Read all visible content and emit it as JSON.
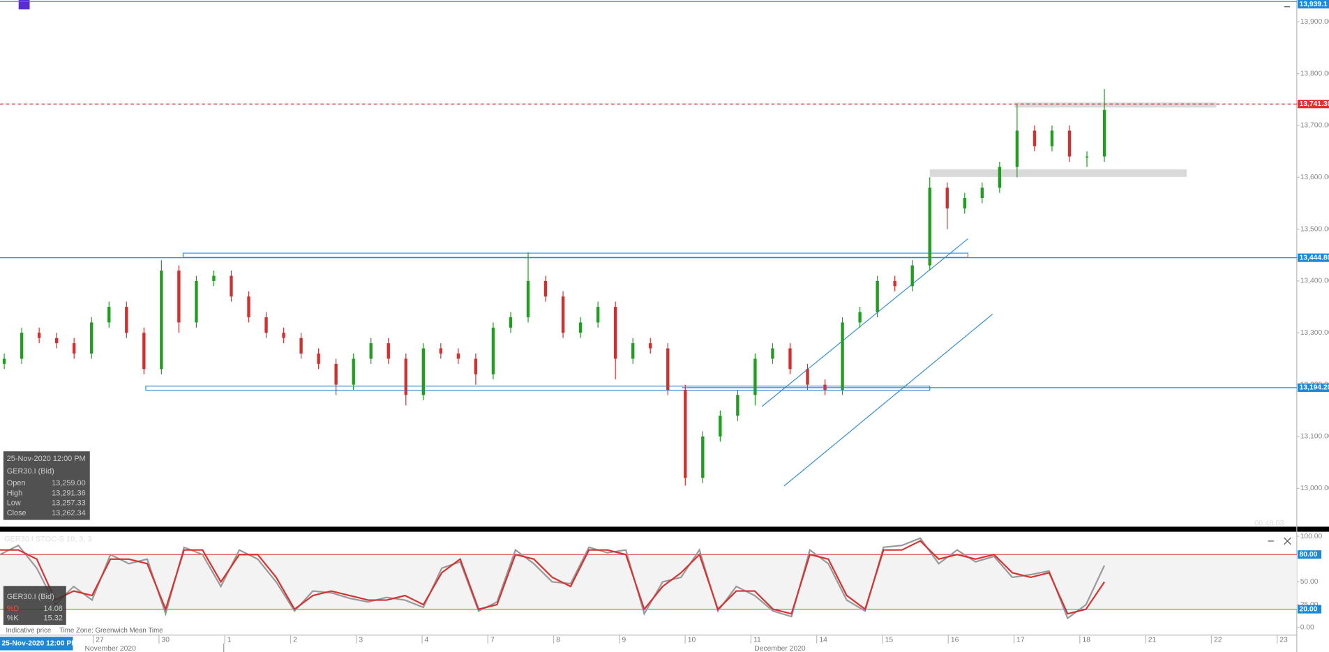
{
  "chart_data": {
    "type": "candlestick",
    "up_color": "#1f9e1f",
    "down_color": "#d32f2f",
    "ylim": [
      12926,
      13942
    ],
    "yticks": [
      {
        "value": 13000,
        "label": "13,000.00"
      },
      {
        "value": 13100,
        "label": "13,100.00"
      },
      {
        "value": 13200,
        "label": "13,200.00"
      },
      {
        "value": 13300,
        "label": "13,300.00"
      },
      {
        "value": 13400,
        "label": "13,400.00"
      },
      {
        "value": 13500,
        "label": "13,500.00"
      },
      {
        "value": 13600,
        "label": "13,600.00"
      },
      {
        "value": 13700,
        "label": "13,700.00"
      },
      {
        "value": 13800,
        "label": "13,800.00"
      },
      {
        "value": 13900,
        "label": "13,900.00"
      }
    ],
    "price_markers": [
      {
        "value": 13939.1,
        "label": "13,939.1",
        "color": "#1e88d6"
      },
      {
        "value": 13741.3,
        "label": "13,741.30",
        "color": "#e03030",
        "dashed": true
      },
      {
        "value": 13444.8,
        "label": "13,444.80",
        "color": "#1e88d6"
      },
      {
        "value": 13194.2,
        "label": "13,194.20",
        "color": "#1e88d6"
      }
    ],
    "candles": {
      "open": [
        13240,
        13250,
        13300,
        13290,
        13280,
        13260,
        13320,
        13350,
        13300,
        13230,
        13420,
        13320,
        13400,
        13410,
        13370,
        13330,
        13300,
        13290,
        13260,
        13240,
        13200,
        13250,
        13280,
        13250,
        13180,
        13270,
        13260,
        13250,
        13220,
        13310,
        13330,
        13400,
        13370,
        13300,
        13320,
        13350,
        13250,
        13280,
        13270,
        13190,
        13020,
        13100,
        13140,
        13180,
        13250,
        13270,
        13230,
        13200,
        13190,
        13320,
        13340,
        13400,
        13390,
        13430,
        13580,
        13540,
        13560,
        13580,
        13620,
        13690,
        13660,
        13690,
        13640,
        13640
      ],
      "high": [
        13260,
        13310,
        13310,
        13300,
        13290,
        13330,
        13360,
        13360,
        13310,
        13440,
        13430,
        13410,
        13420,
        13420,
        13380,
        13340,
        13310,
        13300,
        13270,
        13250,
        13260,
        13290,
        13290,
        13260,
        13280,
        13280,
        13270,
        13260,
        13320,
        13340,
        13455,
        13410,
        13380,
        13330,
        13360,
        13360,
        13290,
        13290,
        13280,
        13200,
        13110,
        13150,
        13190,
        13260,
        13280,
        13280,
        13240,
        13210,
        13330,
        13350,
        13410,
        13410,
        13440,
        13600,
        13590,
        13570,
        13590,
        13630,
        13740,
        13700,
        13700,
        13700,
        13650,
        13770
      ],
      "low": [
        13230,
        13240,
        13280,
        13270,
        13250,
        13250,
        13310,
        13290,
        13220,
        13220,
        13300,
        13310,
        13390,
        13360,
        13320,
        13290,
        13280,
        13250,
        13230,
        13180,
        13190,
        13240,
        13240,
        13160,
        13170,
        13250,
        13240,
        13200,
        13210,
        13300,
        13320,
        13360,
        13290,
        13290,
        13310,
        13210,
        13240,
        13260,
        13180,
        13005,
        13010,
        13090,
        13130,
        13160,
        13240,
        13220,
        13190,
        13180,
        13180,
        13310,
        13330,
        13380,
        13380,
        13420,
        13500,
        13530,
        13550,
        13570,
        13600,
        13650,
        13650,
        13630,
        13620,
        13630
      ],
      "close": [
        13250,
        13300,
        13290,
        13280,
        13260,
        13320,
        13350,
        13300,
        13230,
        13420,
        13320,
        13400,
        13410,
        13370,
        13330,
        13300,
        13290,
        13260,
        13240,
        13200,
        13250,
        13280,
        13250,
        13180,
        13270,
        13260,
        13250,
        13220,
        13310,
        13330,
        13400,
        13370,
        13300,
        13320,
        13350,
        13250,
        13280,
        13270,
        13190,
        13020,
        13100,
        13140,
        13180,
        13250,
        13270,
        13230,
        13200,
        13190,
        13320,
        13340,
        13400,
        13390,
        13430,
        13580,
        13540,
        13560,
        13580,
        13620,
        13690,
        13660,
        13690,
        13640,
        13640,
        13730
      ]
    },
    "info_box": {
      "date": "25-Nov-2020 12:00 PM",
      "symbol": "GER30.I (Bid)",
      "rows": [
        [
          "Open",
          "13,259.00"
        ],
        [
          "High",
          "13,291.36"
        ],
        [
          "Low",
          "13,257.33"
        ],
        [
          "Close",
          "13,262.34"
        ]
      ]
    },
    "timer": "00:48:03",
    "indicator": {
      "title": "GER30.I STOC-S 10, 3, 3",
      "ylim": [
        -6.5,
        105
      ],
      "yticks": [
        {
          "value": 100,
          "label": "100.00"
        },
        {
          "value": 50,
          "label": "50.00"
        },
        {
          "value": 25,
          "label": "25.00"
        },
        {
          "value": 0,
          "label": "0.00"
        }
      ],
      "levels": [
        {
          "value": 80,
          "label": "80.00",
          "color": "#e05050"
        },
        {
          "value": 20,
          "label": "20.00",
          "color": "#3cc03c"
        }
      ],
      "series": [
        {
          "name": "%K",
          "color": "#999999",
          "values": [
            80,
            90,
            65,
            25,
            45,
            30,
            80,
            70,
            75,
            15,
            88,
            80,
            45,
            85,
            75,
            50,
            18,
            40,
            38,
            32,
            28,
            33,
            30,
            22,
            65,
            72,
            18,
            28,
            85,
            70,
            50,
            48,
            88,
            82,
            85,
            15,
            50,
            55,
            85,
            18,
            45,
            35,
            18,
            12,
            85,
            70,
            30,
            18,
            88,
            90,
            98,
            70,
            85,
            72,
            78,
            55,
            58,
            62,
            10,
            25,
            68
          ]
        },
        {
          "name": "%D",
          "color": "#d93030",
          "values": [
            85,
            85,
            75,
            30,
            40,
            35,
            75,
            75,
            70,
            20,
            85,
            85,
            50,
            80,
            80,
            55,
            20,
            35,
            40,
            35,
            30,
            30,
            35,
            25,
            60,
            75,
            20,
            25,
            80,
            75,
            55,
            45,
            85,
            85,
            80,
            20,
            45,
            60,
            80,
            20,
            40,
            40,
            20,
            15,
            80,
            75,
            35,
            20,
            85,
            85,
            95,
            75,
            80,
            75,
            80,
            60,
            55,
            60,
            15,
            20,
            50
          ]
        }
      ],
      "info_box": {
        "symbol": "GER30.I (Bid)",
        "rows": [
          [
            "%D",
            "14.08"
          ],
          [
            "%K",
            "15.32"
          ]
        ]
      }
    },
    "xaxis": {
      "categories": [
        "27",
        "30",
        "1",
        "2",
        "3",
        "4",
        "7",
        "8",
        "9",
        "10",
        "11",
        "14",
        "15",
        "16",
        "17",
        "18",
        "21",
        "22",
        "23"
      ],
      "months": [
        "November 2020",
        "December 2020"
      ],
      "cursor_label": "25-Nov-2020 12:00 PM"
    },
    "footer": [
      "Indicative price",
      "Time Zone: Greenwich Mean Time"
    ]
  }
}
